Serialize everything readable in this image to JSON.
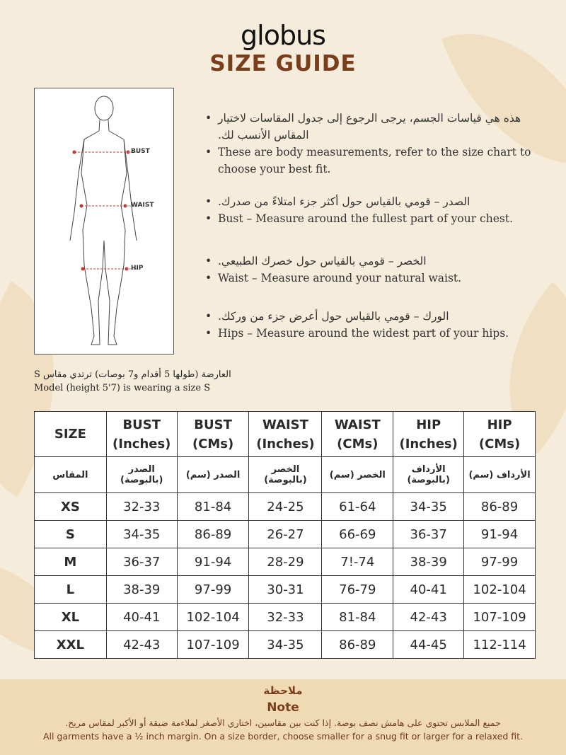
{
  "brand": "globus",
  "title": "SIZE GUIDE",
  "figure": {
    "labels": [
      "BUST",
      "WAIST",
      "HIP"
    ],
    "accent": "#c0392b"
  },
  "bullets": [
    {
      "ar": "هذه هي قياسات الجسم، يرجى الرجوع إلى جدول المقاسات لاختيار المقاس الأنسب لك.",
      "en": "These are body measurements, refer to the size chart to choose your best fit."
    },
    {
      "ar": "الصدر – قومي بالقياس حول أكثر جزء امتلاءً من صدرك.",
      "en": "Bust – Measure around the fullest part of your chest."
    },
    {
      "ar": "الخصر – قومي بالقياس حول خصرك الطبيعي.",
      "en": "Waist – Measure around your natural waist."
    },
    {
      "ar": "الورك – قومي بالقياس حول أعرض جزء من وركك.",
      "en": "Hips – Measure around the widest part of your hips."
    }
  ],
  "model": {
    "ar": "العارضة (طولها 5 أقدام و7 بوصات) ترتدي مقاس S",
    "en": "Model (height 5'7) is wearing a size S"
  },
  "table": {
    "headers": [
      [
        "SIZE",
        ""
      ],
      [
        "BUST",
        "(Inches)"
      ],
      [
        "BUST",
        "(CMs)"
      ],
      [
        "WAIST",
        "(Inches)"
      ],
      [
        "WAIST",
        "(CMs)"
      ],
      [
        "HIP",
        "(Inches)"
      ],
      [
        "HIP",
        "(CMs)"
      ]
    ],
    "ar_headers": [
      "المقاس",
      "الصدر (بالبوصة)",
      "الصدر (سم)",
      "الخصر (بالبوصة)",
      "الخصر (سم)",
      "الأرداف (بالبوصة)",
      "الأرداف (سم)"
    ],
    "rows": [
      [
        "XS",
        "32-33",
        "81-84",
        "24-25",
        "61-64",
        "34-35",
        "86-89"
      ],
      [
        "S",
        "34-35",
        "86-89",
        "26-27",
        "66-69",
        "36-37",
        "91-94"
      ],
      [
        "M",
        "36-37",
        "91-94",
        "28-29",
        "7!-74",
        "38-39",
        "97-99"
      ],
      [
        "L",
        "38-39",
        "97-99",
        "30-31",
        "76-79",
        "40-41",
        "102-104"
      ],
      [
        "XL",
        "40-41",
        "102-104",
        "32-33",
        "81-84",
        "42-43",
        "107-109"
      ],
      [
        "XXL",
        "42-43",
        "107-109",
        "34-35",
        "86-89",
        "44-45",
        "112-114"
      ]
    ]
  },
  "note": {
    "title_ar": "ملاحظة",
    "title_en": "Note",
    "text_ar": "جميع الملابس تحتوي على هامش نصف بوصة. إذا كنت بين مقاسين، اختاري الأصغر لملاءمة ضيقة أو الأكبر لمقاس مريح.",
    "text_en": "All garments have a ½ inch margin. On a size border, choose smaller for a snug fit or larger for a relaxed fit."
  }
}
